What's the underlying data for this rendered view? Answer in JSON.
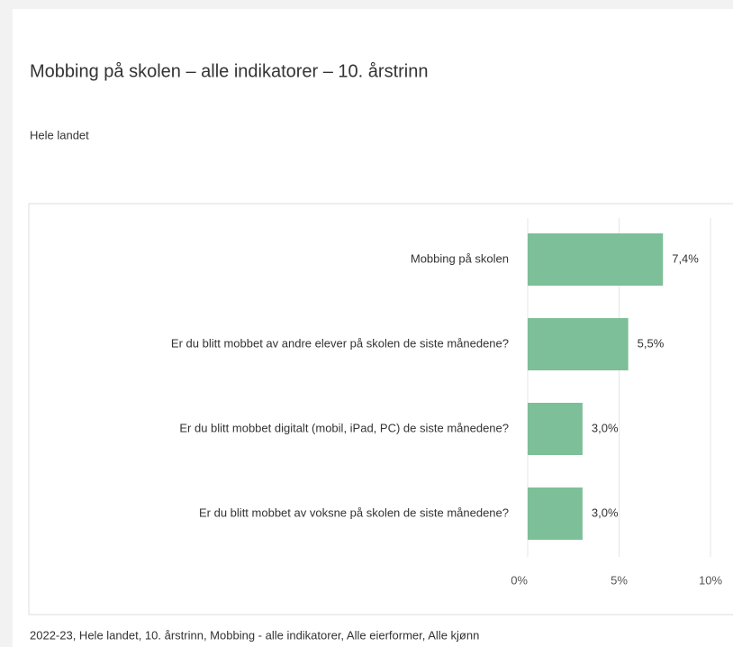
{
  "chart_data": {
    "type": "bar",
    "orientation": "horizontal",
    "title": "Mobbing på skolen – alle indikatorer – 10. årstrinn",
    "subtitle": "Hele landet",
    "footnote": "2022-23, Hele landet, 10. årstrinn, Mobbing - alle indikatorer, Alle eierformer, Alle kjønn",
    "categories": [
      "Mobbing på skolen",
      "Er du blitt mobbet av andre elever på skolen de siste månedene?",
      "Er du blitt mobbet digitalt (mobil, iPad, PC) de siste månedene?",
      "Er du blitt mobbet av voksne på skolen de siste månedene?"
    ],
    "values": [
      7.4,
      5.5,
      3.0,
      3.0
    ],
    "value_labels": [
      "7,4%",
      "5,5%",
      "3,0%",
      "3,0%"
    ],
    "color": "#7dbf98",
    "xlim": [
      0,
      10
    ],
    "xticks": [
      {
        "value": 0,
        "label": "0%"
      },
      {
        "value": 5,
        "label": "5%"
      },
      {
        "value": 10,
        "label": "10%"
      }
    ],
    "grid": true
  }
}
